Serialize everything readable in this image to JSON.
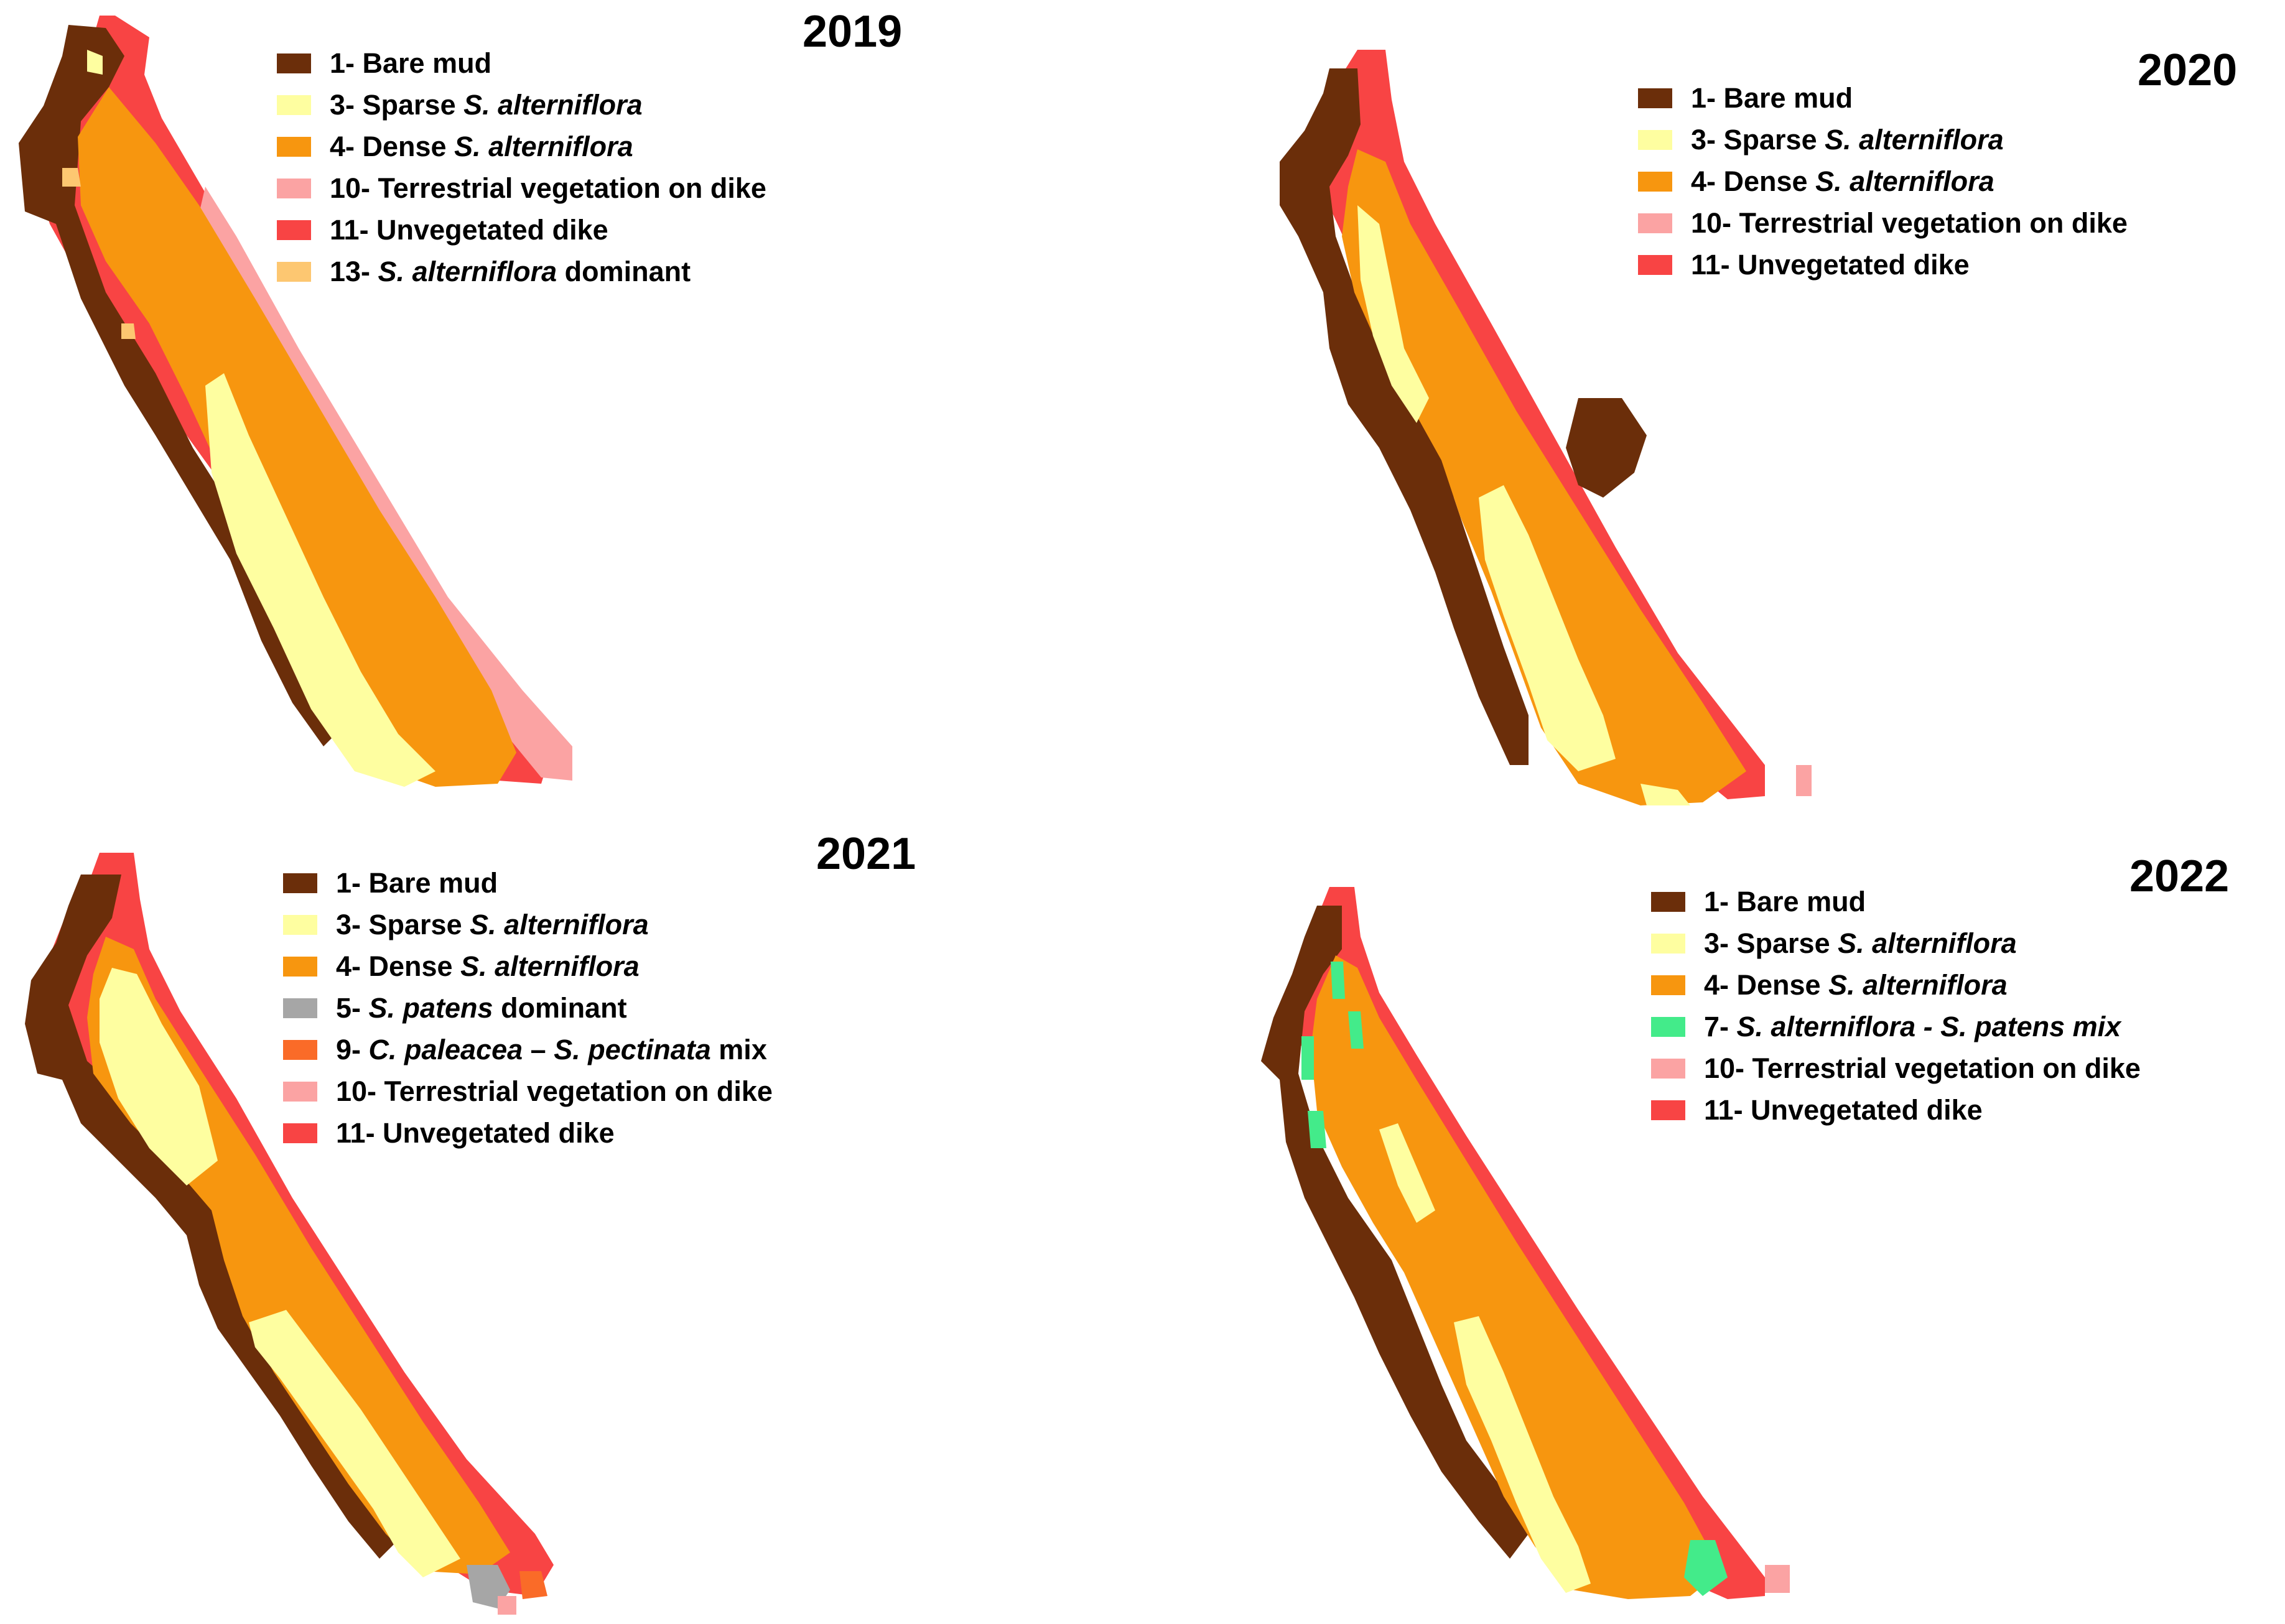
{
  "colors": {
    "bare_mud": "#6b2e0a",
    "sparse": "#fefea0",
    "dense": "#f7960f",
    "s_patens": "#a6a6a6",
    "mix9": "#fa6b28",
    "terrestrial": "#fba3a3",
    "unvegetated": "#f84444",
    "mix7": "#43eb8a",
    "dominant13": "#fdc771"
  },
  "panels": [
    {
      "year": "2019",
      "legend": [
        {
          "color": "bare_mud",
          "parts": [
            {
              "t": "1- Bare mud"
            }
          ]
        },
        {
          "color": "sparse",
          "parts": [
            {
              "t": "3- Sparse "
            },
            {
              "t": "S. alterniflora",
              "i": true
            }
          ]
        },
        {
          "color": "dense",
          "parts": [
            {
              "t": "4- Dense "
            },
            {
              "t": "S. alterniflora",
              "i": true
            }
          ]
        },
        {
          "color": "terrestrial",
          "parts": [
            {
              "t": "10- Terrestrial vegetation on dike"
            }
          ]
        },
        {
          "color": "unvegetated",
          "parts": [
            {
              "t": "11- Unvegetated dike"
            }
          ]
        },
        {
          "color": "dominant13",
          "parts": [
            {
              "t": "13- "
            },
            {
              "t": "S. alterniflora",
              "i": true
            },
            {
              "t": " dominant"
            }
          ]
        }
      ]
    },
    {
      "year": "2020",
      "legend": [
        {
          "color": "bare_mud",
          "parts": [
            {
              "t": "1- Bare mud"
            }
          ]
        },
        {
          "color": "sparse",
          "parts": [
            {
              "t": "3- Sparse "
            },
            {
              "t": "S. alterniflora",
              "i": true
            }
          ]
        },
        {
          "color": "dense",
          "parts": [
            {
              "t": "4- Dense "
            },
            {
              "t": "S. alterniflora",
              "i": true
            }
          ]
        },
        {
          "color": "terrestrial",
          "parts": [
            {
              "t": "10- Terrestrial vegetation on dike"
            }
          ]
        },
        {
          "color": "unvegetated",
          "parts": [
            {
              "t": "11- Unvegetated dike"
            }
          ]
        }
      ]
    },
    {
      "year": "2021",
      "legend": [
        {
          "color": "bare_mud",
          "parts": [
            {
              "t": "1- Bare mud"
            }
          ]
        },
        {
          "color": "sparse",
          "parts": [
            {
              "t": "3- Sparse "
            },
            {
              "t": "S. alterniflora",
              "i": true
            }
          ]
        },
        {
          "color": "dense",
          "parts": [
            {
              "t": "4- Dense "
            },
            {
              "t": "S. alterniflora",
              "i": true
            }
          ]
        },
        {
          "color": "s_patens",
          "parts": [
            {
              "t": "5- "
            },
            {
              "t": "S. patens",
              "i": true
            },
            {
              "t": " dominant"
            }
          ]
        },
        {
          "color": "mix9",
          "parts": [
            {
              "t": "9- "
            },
            {
              "t": "C. paleacea",
              "i": true
            },
            {
              "t": " – "
            },
            {
              "t": "S. pectinata",
              "i": true
            },
            {
              "t": " mix"
            }
          ]
        },
        {
          "color": "terrestrial",
          "parts": [
            {
              "t": "10- Terrestrial vegetation on dike"
            }
          ]
        },
        {
          "color": "unvegetated",
          "parts": [
            {
              "t": "11- Unvegetated dike"
            }
          ]
        }
      ]
    },
    {
      "year": "2022",
      "legend": [
        {
          "color": "bare_mud",
          "parts": [
            {
              "t": "1- Bare mud"
            }
          ]
        },
        {
          "color": "sparse",
          "parts": [
            {
              "t": "3- Sparse "
            },
            {
              "t": "S. alterniflora",
              "i": true
            }
          ]
        },
        {
          "color": "dense",
          "parts": [
            {
              "t": "4- Dense "
            },
            {
              "t": "S. alterniflora",
              "i": true
            }
          ]
        },
        {
          "color": "mix7",
          "parts": [
            {
              "t": "7- "
            },
            {
              "t": "S. alterniflora - S. patens mix",
              "i": true
            }
          ]
        },
        {
          "color": "terrestrial",
          "parts": [
            {
              "t": "10- Terrestrial vegetation on dike"
            }
          ]
        },
        {
          "color": "unvegetated",
          "parts": [
            {
              "t": "11- Unvegetated dike"
            }
          ]
        }
      ]
    }
  ]
}
